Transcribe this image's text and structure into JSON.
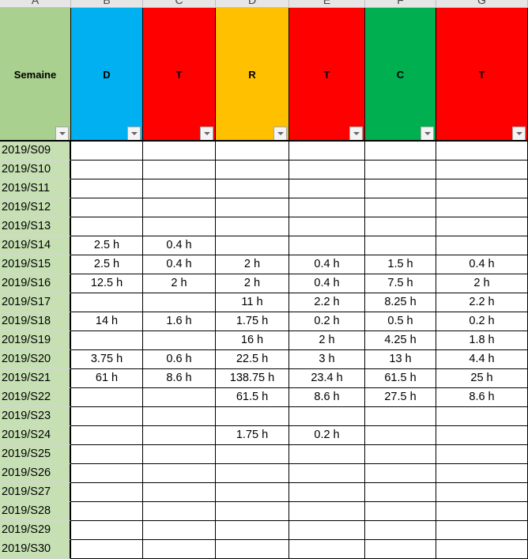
{
  "column_letters": [
    "A",
    "B",
    "C",
    "D",
    "E",
    "F",
    "G"
  ],
  "headers": [
    {
      "label": "Semaine",
      "color": "#a9d08e"
    },
    {
      "label": "D",
      "color": "#00b0f0"
    },
    {
      "label": "T",
      "color": "#ff0000"
    },
    {
      "label": "R",
      "color": "#ffc000"
    },
    {
      "label": "T",
      "color": "#ff0000"
    },
    {
      "label": "C",
      "color": "#00b050"
    },
    {
      "label": "T",
      "color": "#ff0000"
    }
  ],
  "rows": [
    [
      "2019/S09",
      "",
      "",
      "",
      "",
      "",
      ""
    ],
    [
      "2019/S10",
      "",
      "",
      "",
      "",
      "",
      ""
    ],
    [
      "2019/S11",
      "",
      "",
      "",
      "",
      "",
      ""
    ],
    [
      "2019/S12",
      "",
      "",
      "",
      "",
      "",
      ""
    ],
    [
      "2019/S13",
      "",
      "",
      "",
      "",
      "",
      ""
    ],
    [
      "2019/S14",
      "2.5 h",
      "0.4 h",
      "",
      "",
      "",
      ""
    ],
    [
      "2019/S15",
      "2.5 h",
      "0.4 h",
      "2 h",
      "0.4 h",
      "1.5 h",
      "0.4 h"
    ],
    [
      "2019/S16",
      "12.5 h",
      "2 h",
      "2 h",
      "0.4 h",
      "7.5 h",
      "2 h"
    ],
    [
      "2019/S17",
      "",
      "",
      "11 h",
      "2.2 h",
      "8.25 h",
      "2.2 h"
    ],
    [
      "2019/S18",
      "14 h",
      "1.6 h",
      "1.75 h",
      "0.2 h",
      "0.5 h",
      "0.2 h"
    ],
    [
      "2019/S19",
      "",
      "",
      "16 h",
      "2 h",
      "4.25 h",
      "1.8 h"
    ],
    [
      "2019/S20",
      "3.75 h",
      "0.6 h",
      "22.5 h",
      "3 h",
      "13 h",
      "4.4 h"
    ],
    [
      "2019/S21",
      "61 h",
      "8.6 h",
      "138.75 h",
      "23.4 h",
      "61.5 h",
      "25 h"
    ],
    [
      "2019/S22",
      "",
      "",
      "61.5 h",
      "8.6 h",
      "27.5 h",
      "8.6 h"
    ],
    [
      "2019/S23",
      "",
      "",
      "",
      "",
      "",
      ""
    ],
    [
      "2019/S24",
      "",
      "",
      "1.75 h",
      "0.2 h",
      "",
      ""
    ],
    [
      "2019/S25",
      "",
      "",
      "",
      "",
      "",
      ""
    ],
    [
      "2019/S26",
      "",
      "",
      "",
      "",
      "",
      ""
    ],
    [
      "2019/S27",
      "",
      "",
      "",
      "",
      "",
      ""
    ],
    [
      "2019/S28",
      "",
      "",
      "",
      "",
      "",
      ""
    ],
    [
      "2019/S29",
      "",
      "",
      "",
      "",
      "",
      ""
    ],
    [
      "2019/S30",
      "",
      "",
      "",
      "",
      "",
      ""
    ]
  ]
}
